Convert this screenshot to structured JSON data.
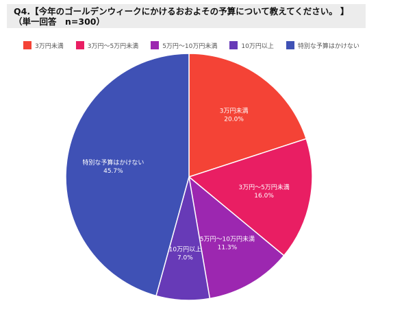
{
  "title": {
    "line1": "Q4.【今年のゴールデンウィークにかけるおおよその予算について教えてください。 】",
    "line2": "（単一回答　n=300）"
  },
  "chart_data": {
    "type": "pie",
    "categories": [
      "3万円未満",
      "3万円～5万円未満",
      "5万円～10万円未満",
      "10万円以上",
      "特別な予算はかけない"
    ],
    "values": [
      20.0,
      16.0,
      11.3,
      7.0,
      45.7
    ],
    "value_labels": [
      "20.0%",
      "16.0%",
      "11.3%",
      "7.0%",
      "45.7%"
    ],
    "colors": [
      "#f44336",
      "#e91e63",
      "#9c27b0",
      "#673ab7",
      "#3f51b5"
    ],
    "legend_position": "top",
    "start_angle": "12 o'clock",
    "direction": "clockwise"
  }
}
